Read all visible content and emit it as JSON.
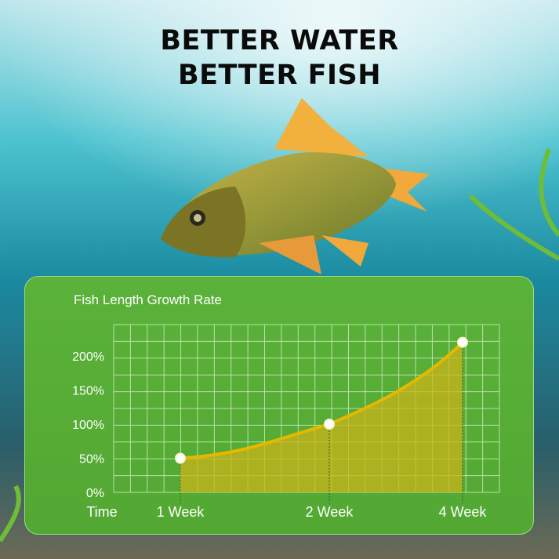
{
  "headline": {
    "line1": "BETTER WATER",
    "line2": "BETTER FISH"
  },
  "colors": {
    "panel": "#55ad35",
    "grid": "#c9eab8",
    "curve": "#e6b800",
    "fill": "#c9b31a",
    "point": "#ffffff"
  },
  "chart_data": {
    "type": "area",
    "title": "Fish Length Growth Rate",
    "xlabel": "Time",
    "categories": [
      "1 Week",
      "2 Week",
      "4 Week"
    ],
    "values": [
      50,
      100,
      220
    ],
    "y_ticks": [
      "0%",
      "50%",
      "100%",
      "150%",
      "200%"
    ],
    "y_tick_values": [
      0,
      50,
      100,
      150,
      200
    ],
    "ylim": [
      0,
      245
    ],
    "grid": true
  }
}
